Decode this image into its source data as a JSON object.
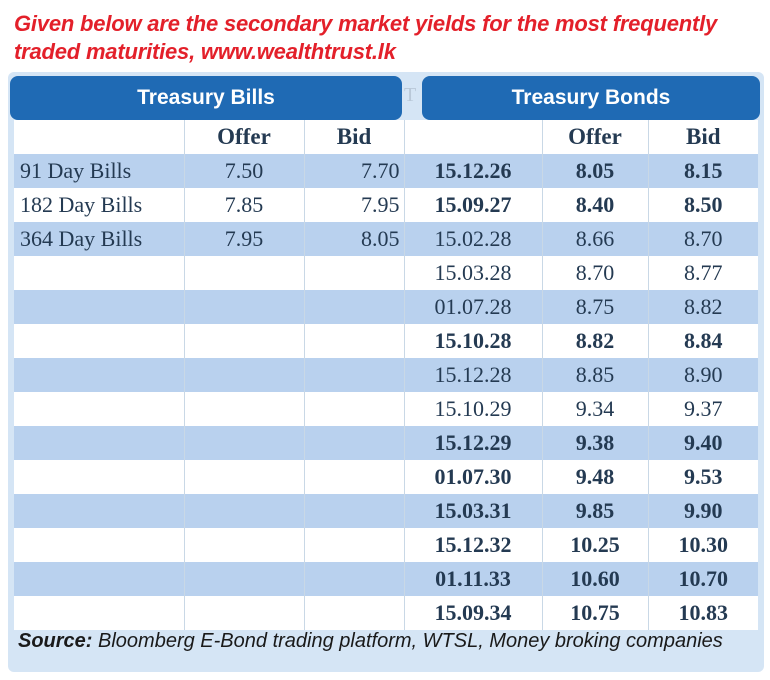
{
  "heading": {
    "line1": "Given below are the secondary market yields for the most frequently",
    "line2": "traded maturities, www.wealthtrust.lk"
  },
  "headers": {
    "bills_title": "Treasury Bills",
    "bonds_title": "Treasury Bonds",
    "stub": "T"
  },
  "columns": {
    "bills_offer": "Offer",
    "bills_bid": "Bid",
    "bonds_offer": "Offer",
    "bonds_bid": "Bid"
  },
  "bills": [
    {
      "name": "91 Day Bills",
      "offer": "7.50",
      "bid": "7.70"
    },
    {
      "name": "182 Day Bills",
      "offer": "7.85",
      "bid": "7.95"
    },
    {
      "name": "364 Day Bills",
      "offer": "7.95",
      "bid": "8.05"
    }
  ],
  "bonds": [
    {
      "maturity": "15.12.26",
      "offer": "8.05",
      "bid": "8.15",
      "bold": true
    },
    {
      "maturity": "15.09.27",
      "offer": "8.40",
      "bid": "8.50",
      "bold": true
    },
    {
      "maturity": "15.02.28",
      "offer": "8.66",
      "bid": "8.70",
      "bold": false
    },
    {
      "maturity": "15.03.28",
      "offer": "8.70",
      "bid": "8.77",
      "bold": false
    },
    {
      "maturity": "01.07.28",
      "offer": "8.75",
      "bid": "8.82",
      "bold": false
    },
    {
      "maturity": "15.10.28",
      "offer": "8.82",
      "bid": "8.84",
      "bold": true
    },
    {
      "maturity": "15.12.28",
      "offer": "8.85",
      "bid": "8.90",
      "bold": false
    },
    {
      "maturity": "15.10.29",
      "offer": "9.34",
      "bid": "9.37",
      "bold": false
    },
    {
      "maturity": "15.12.29",
      "offer": "9.38",
      "bid": "9.40",
      "bold": true
    },
    {
      "maturity": "01.07.30",
      "offer": "9.48",
      "bid": "9.53",
      "bold": true
    },
    {
      "maturity": "15.03.31",
      "offer": "9.85",
      "bid": "9.90",
      "bold": true
    },
    {
      "maturity": "15.12.32",
      "offer": "10.25",
      "bid": "10.30",
      "bold": true
    },
    {
      "maturity": "01.11.33",
      "offer": "10.60",
      "bid": "10.70",
      "bold": true
    },
    {
      "maturity": "15.09.34",
      "offer": "10.75",
      "bid": "10.83",
      "bold": true
    }
  ],
  "source": {
    "label": "Source:",
    "text": " Bloomberg E-Bond trading platform, WTSL, Money broking companies"
  },
  "colors": {
    "heading_red": "#e3202a",
    "header_blue": "#1f6ab4",
    "band_blue": "#b9d1ee",
    "panel_blue": "#d5e5f5"
  }
}
